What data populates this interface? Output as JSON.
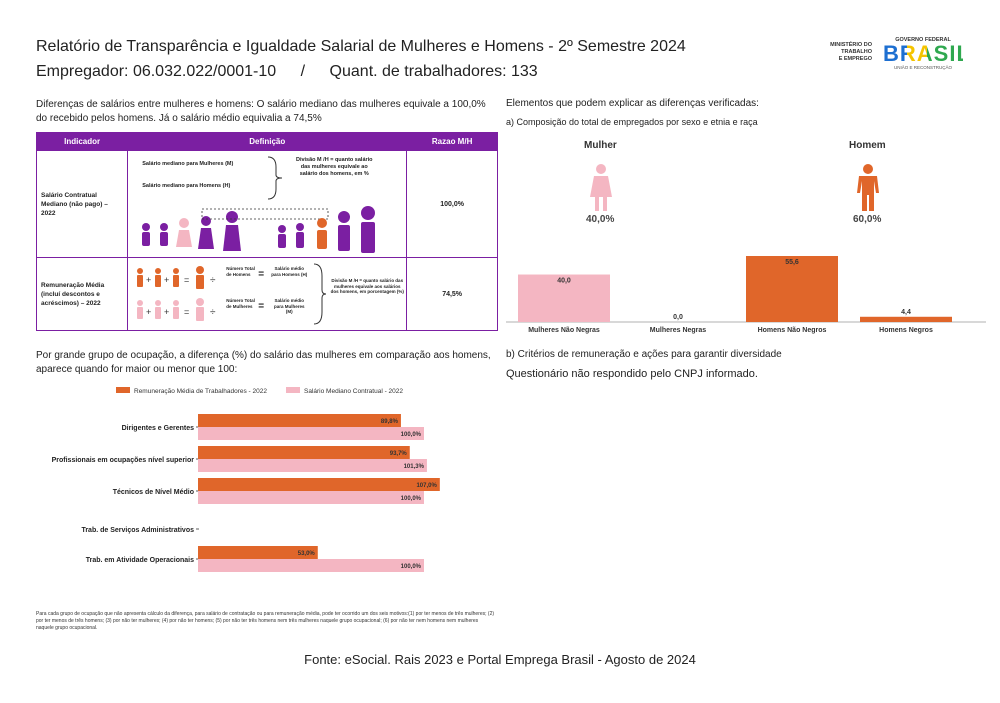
{
  "header": {
    "title": "Relatório de Transparência e Igualdade Salarial de Mulheres e Homens - 2º Semestre 2024",
    "employer": "Empregador: 06.032.022/0001-10",
    "separator": "/",
    "workers": "Quant. de trabalhadores: 133"
  },
  "logos": {
    "ministry_line1": "MINISTÉRIO DO",
    "ministry_line2": "TRABALHO",
    "ministry_line3": "E EMPREGO",
    "gov": "GOVERNO FEDERAL",
    "brasil": "BRASIL",
    "slogan": "UNIÃO E RECONSTRUÇÃO"
  },
  "intro": {
    "text": "Diferenças de salários entre mulheres e homens: O salário mediano das mulheres equivale a 100,0% do recebido pelos homens. Já o salário médio equivalia a 74,5%"
  },
  "indicator_table": {
    "headers": [
      "Indicador",
      "Definição",
      "Razao M/H"
    ],
    "rows": [
      {
        "indicator": "Salário Contratual Mediano (não pago) – 2022",
        "def_line1": "Salário mediano para Mulheres (M)",
        "def_line2": "Salário mediano para Homens (H)",
        "def_note": "Divisão M /H = quanto salário das mulheres equivale ao salário dos homens, em %",
        "ratio": "100,0%"
      },
      {
        "indicator": "Remuneração Média (incluí descontos e acréscimos) – 2022",
        "def_men_a": "Número Total de Homens",
        "def_men_b": "Salário médio para Homens (H)",
        "def_women_a": "Número Total de Mulheres",
        "def_women_b": "Salário médio para Mulheres (M)",
        "def_note": "Divisão M /H = quanto salário das mulheres equivale aos salários dos homens, em porcentagem (%)",
        "ratio": "74,5%"
      }
    ]
  },
  "right": {
    "heading": "Elementos que podem explicar as diferenças verificadas:",
    "sub_a": "a) Composição do total de empregados por sexo e etnia e raça",
    "women_label": "Mulher",
    "men_label": "Homem",
    "women_pct": "40,0%",
    "men_pct": "60,0%",
    "sub_b": "b) Critérios de remuneração e ações para garantir diversidade",
    "sub_b_text": "Questionário não respondido pelo CNPJ informado."
  },
  "chart_data": [
    {
      "type": "bar",
      "categories": [
        "Mulheres Não Negras",
        "Mulheres Negras",
        "Homens Não Negros",
        "Homens Negros"
      ],
      "values": [
        40.0,
        0.0,
        55.6,
        4.4
      ],
      "value_labels": [
        "40,0",
        "0,0",
        "55,6",
        "4,4"
      ],
      "colors": [
        "#f4b6c2",
        "#f4b6c2",
        "#e0662a",
        "#e0662a"
      ]
    },
    {
      "type": "bar",
      "orientation": "horizontal",
      "categories": [
        "Dirigentes e Gerentes",
        "Profissionais em ocupações nível superior",
        "Técnicos de Nível Médio",
        "Trab. de Serviços Administrativos",
        "Trab. em Atividade Operacionais"
      ],
      "series": [
        {
          "name": "Remuneração Média de Trabalhadores - 2022",
          "values": [
            89.8,
            93.7,
            107.0,
            null,
            53.0
          ],
          "labels": [
            "89,8%",
            "93,7%",
            "107,0%",
            "",
            "53,0%"
          ],
          "color": "#e0662a"
        },
        {
          "name": "Salário Mediano Contratual - 2022",
          "values": [
            100.0,
            101.3,
            100.0,
            null,
            100.0
          ],
          "labels": [
            "100,0%",
            "101,3%",
            "100,0%",
            "",
            "100,0%"
          ],
          "color": "#f4b6c2"
        }
      ]
    }
  ],
  "occupation": {
    "heading": "Por grande grupo de ocupação, a diferença (%) do salário das mulheres em comparação aos homens, aparece quando for maior ou menor que 100:",
    "footnote": "Para cada grupo de ocupação que não apresenta cálculo da diferença, para salário de contratação ou para remuneração média, pode ter ocorrido um dos seis motivos:(1) por ter menos de três mulheres; (2) por ter menos de três homens; (3) por não ter mulheres; (4) por não ter homens; (5) por não ter três homens nem três mulheres naquele grupo ocupacional; (6) por não ter nem homens nem mulheres naquele grupo ocupacional."
  },
  "footer": {
    "source": "Fonte: eSocial. Rais 2023 e Portal Emprega Brasil - Agosto de 2024"
  }
}
